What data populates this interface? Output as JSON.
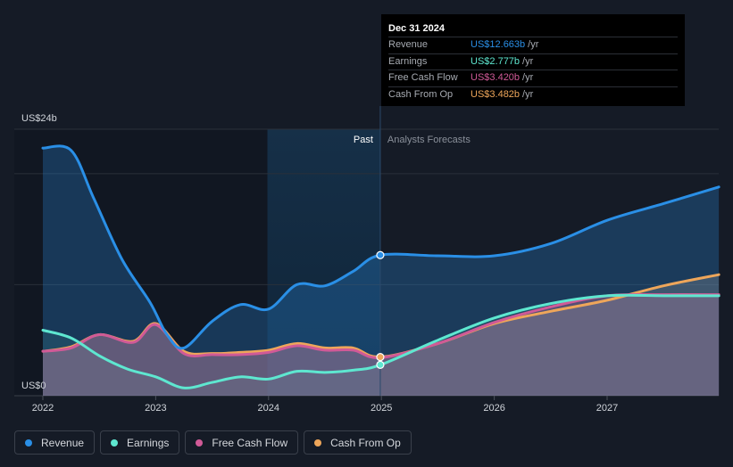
{
  "chart_data": {
    "type": "line",
    "y_unit_prefix": "US$",
    "y_axis_labels": {
      "top": "US$24b",
      "bottom": "US$0"
    },
    "ylim": [
      0,
      24
    ],
    "xlim": [
      2021.9,
      2027.99
    ],
    "x_ticks": [
      2022,
      2023,
      2024,
      2025,
      2026,
      2027
    ],
    "x_tick_labels": [
      "2022",
      "2023",
      "2024",
      "2025",
      "2026",
      "2027"
    ],
    "divider_x": 2024.99,
    "highlight_start_x": 2023.99,
    "region_labels": {
      "past": "Past",
      "forecast": "Analysts Forecasts"
    },
    "series": [
      {
        "name": "Revenue",
        "color": "#2a8fe6",
        "points": [
          [
            2022.0,
            22.3
          ],
          [
            2022.25,
            22.1
          ],
          [
            2022.45,
            17.8
          ],
          [
            2022.7,
            12.3
          ],
          [
            2022.95,
            8.4
          ],
          [
            2023.1,
            5.5
          ],
          [
            2023.25,
            4.3
          ],
          [
            2023.5,
            6.7
          ],
          [
            2023.75,
            8.2
          ],
          [
            2024.0,
            7.8
          ],
          [
            2024.25,
            10.0
          ],
          [
            2024.5,
            9.9
          ],
          [
            2024.75,
            11.2
          ],
          [
            2024.99,
            12.663
          ],
          [
            2025.5,
            12.6
          ],
          [
            2026.0,
            12.6
          ],
          [
            2026.5,
            13.7
          ],
          [
            2027.0,
            15.8
          ],
          [
            2027.5,
            17.3
          ],
          [
            2027.99,
            18.8
          ]
        ]
      },
      {
        "name": "Earnings",
        "color": "#5ee7d0",
        "points": [
          [
            2022.0,
            5.9
          ],
          [
            2022.25,
            5.2
          ],
          [
            2022.5,
            3.6
          ],
          [
            2022.75,
            2.4
          ],
          [
            2023.0,
            1.7
          ],
          [
            2023.25,
            0.7
          ],
          [
            2023.5,
            1.2
          ],
          [
            2023.75,
            1.7
          ],
          [
            2024.0,
            1.5
          ],
          [
            2024.25,
            2.2
          ],
          [
            2024.5,
            2.1
          ],
          [
            2024.75,
            2.3
          ],
          [
            2024.99,
            2.777
          ],
          [
            2025.5,
            5.0
          ],
          [
            2026.0,
            7.0
          ],
          [
            2026.5,
            8.3
          ],
          [
            2027.0,
            9.0
          ],
          [
            2027.5,
            9.0
          ],
          [
            2027.99,
            9.0
          ]
        ]
      },
      {
        "name": "Free Cash Flow",
        "color": "#d05a97",
        "points": [
          [
            2022.0,
            4.0
          ],
          [
            2022.25,
            4.3
          ],
          [
            2022.5,
            5.5
          ],
          [
            2022.8,
            4.8
          ],
          [
            2023.0,
            6.4
          ],
          [
            2023.25,
            3.8
          ],
          [
            2023.5,
            3.7
          ],
          [
            2023.75,
            3.7
          ],
          [
            2024.0,
            3.9
          ],
          [
            2024.25,
            4.5
          ],
          [
            2024.5,
            4.1
          ],
          [
            2024.75,
            4.1
          ],
          [
            2024.99,
            3.42
          ],
          [
            2025.5,
            4.7
          ],
          [
            2026.0,
            6.6
          ],
          [
            2026.5,
            8.0
          ],
          [
            2027.0,
            9.0
          ],
          [
            2027.5,
            9.1
          ],
          [
            2027.99,
            9.1
          ]
        ]
      },
      {
        "name": "Cash From Op",
        "color": "#eea65a",
        "points": [
          [
            2022.0,
            4.0
          ],
          [
            2022.25,
            4.4
          ],
          [
            2022.5,
            5.5
          ],
          [
            2022.8,
            4.9
          ],
          [
            2023.0,
            6.5
          ],
          [
            2023.25,
            4.0
          ],
          [
            2023.5,
            3.8
          ],
          [
            2023.75,
            3.9
          ],
          [
            2024.0,
            4.1
          ],
          [
            2024.25,
            4.7
          ],
          [
            2024.5,
            4.3
          ],
          [
            2024.75,
            4.3
          ],
          [
            2024.99,
            3.482
          ],
          [
            2025.5,
            4.7
          ],
          [
            2026.0,
            6.5
          ],
          [
            2026.5,
            7.6
          ],
          [
            2027.0,
            8.6
          ],
          [
            2027.5,
            9.9
          ],
          [
            2027.99,
            10.9
          ]
        ]
      }
    ]
  },
  "tooltip": {
    "date": "Dec 31 2024",
    "rows": [
      {
        "label": "Revenue",
        "value": "US$12.663b",
        "unit": "/yr",
        "color": "#2a8fe6"
      },
      {
        "label": "Earnings",
        "value": "US$2.777b",
        "unit": "/yr",
        "color": "#5ee7d0"
      },
      {
        "label": "Free Cash Flow",
        "value": "US$3.420b",
        "unit": "/yr",
        "color": "#d05a97"
      },
      {
        "label": "Cash From Op",
        "value": "US$3.482b",
        "unit": "/yr",
        "color": "#eea65a"
      }
    ]
  },
  "legend": [
    {
      "label": "Revenue",
      "color": "#2a8fe6"
    },
    {
      "label": "Earnings",
      "color": "#5ee7d0"
    },
    {
      "label": "Free Cash Flow",
      "color": "#d05a97"
    },
    {
      "label": "Cash From Op",
      "color": "#eea65a"
    }
  ]
}
